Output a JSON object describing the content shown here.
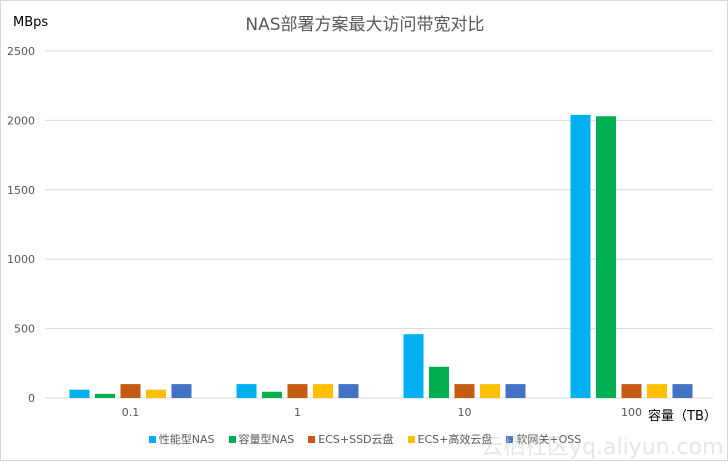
{
  "chart_data": {
    "type": "bar",
    "title": "NAS部署方案最大访问带宽对比",
    "ylabel": "MBps",
    "xlabel": "容量（TB）",
    "categories": [
      "0.1",
      "1",
      "10",
      "100"
    ],
    "ylim": [
      0,
      2500
    ],
    "yticks": [
      0,
      500,
      1000,
      1500,
      2000,
      2500
    ],
    "grid": true,
    "legend_position": "bottom",
    "series": [
      {
        "name": "性能型NAS",
        "color": "#00b0f0",
        "values": [
          60,
          100,
          460,
          2040
        ]
      },
      {
        "name": "容量型NAS",
        "color": "#00b050",
        "values": [
          30,
          45,
          225,
          2030
        ]
      },
      {
        "name": "ECS+SSD云盘",
        "color": "#c55a11",
        "values": [
          100,
          100,
          100,
          100
        ]
      },
      {
        "name": "ECS+高效云盘",
        "color": "#ffc000",
        "values": [
          60,
          100,
          100,
          100
        ]
      },
      {
        "name": "软网关+OSS",
        "color": "#4472c4",
        "values": [
          100,
          100,
          100,
          100
        ]
      }
    ]
  },
  "watermark": "云栖社区yq.aliyun.com"
}
